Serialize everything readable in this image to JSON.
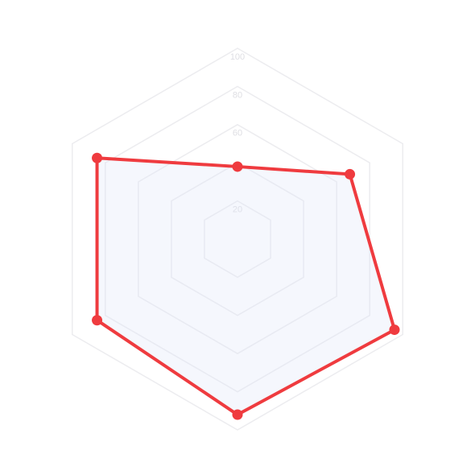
{
  "chart_data": {
    "type": "radar",
    "axes_count": 6,
    "rlim": [
      0,
      100
    ],
    "ticks": [
      20,
      40,
      60,
      80,
      100
    ],
    "tick_labels": [
      "20",
      "",
      "60",
      "80",
      "100"
    ],
    "grid": true,
    "legend": "none",
    "series": [
      {
        "values": [
          38,
          68,
          95,
          92,
          85,
          85
        ],
        "line_color": "#ef3b3f",
        "fill_color": "#dfe6f7"
      }
    ]
  }
}
